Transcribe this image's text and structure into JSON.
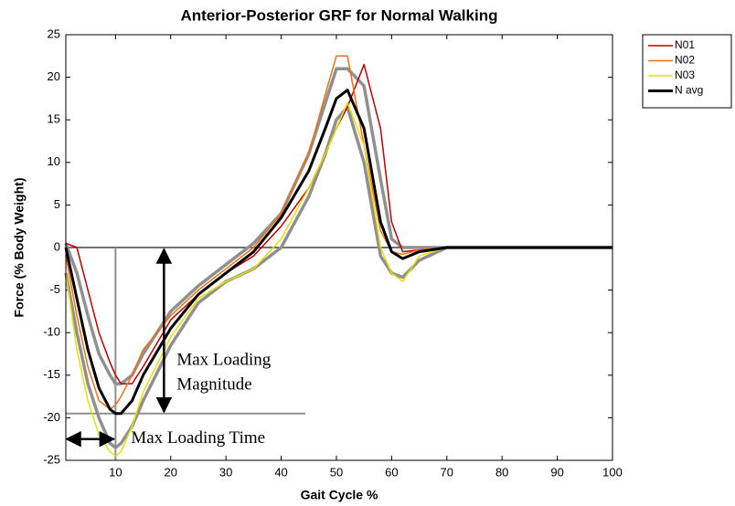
{
  "chart_data": {
    "type": "line",
    "title": "Anterior-Posterior GRF for Normal Walking",
    "xlabel": "Gait Cycle %",
    "ylabel": "Force (% Body Weight)",
    "x": [
      1,
      3,
      5,
      7,
      9,
      10,
      11,
      13,
      15,
      20,
      25,
      30,
      35,
      40,
      45,
      48,
      50,
      52,
      55,
      58,
      60,
      62,
      65,
      70,
      80,
      90,
      100
    ],
    "series": [
      {
        "color": "#909090",
        "values": [
          0.5,
          -3,
          -8,
          -12.5,
          -15,
          -16,
          -16,
          -15,
          -12.5,
          -7.5,
          -4.5,
          -2,
          0.5,
          4,
          11,
          17,
          21,
          21,
          19,
          8,
          1,
          0,
          0,
          0,
          0,
          0,
          0
        ]
      },
      {
        "color": "#909090",
        "values": [
          -3,
          -10,
          -16,
          -20,
          -23,
          -23.5,
          -23,
          -21,
          -18,
          -11.5,
          -6.5,
          -4,
          -2.5,
          0,
          6,
          11,
          15,
          16.5,
          10,
          -1,
          -3,
          -3.5,
          -1.5,
          0,
          0,
          0,
          0
        ]
      },
      {
        "name": "N01",
        "color": "#c00000",
        "values": [
          0.5,
          0,
          -5,
          -10,
          -13.5,
          -15,
          -16,
          -16,
          -14,
          -8.5,
          -5.5,
          -3,
          -1,
          2.5,
          7,
          11,
          14,
          16.5,
          21.5,
          14,
          3,
          -0.5,
          -0.3,
          0,
          0,
          0,
          0
        ]
      },
      {
        "name": "N02",
        "color": "#f07010",
        "values": [
          -1,
          -8,
          -14,
          -18,
          -19,
          -18.5,
          -17.5,
          -15,
          -12,
          -8,
          -5,
          -2.5,
          0,
          4,
          11,
          18,
          22.5,
          22.5,
          12,
          2,
          -0.5,
          -0.8,
          -0.3,
          0,
          0,
          0,
          0
        ]
      },
      {
        "name": "N03",
        "color": "#e8e000",
        "values": [
          -3,
          -12,
          -18,
          -22,
          -24,
          -24.5,
          -24,
          -21,
          -17,
          -10.5,
          -6,
          -4,
          -2.5,
          1,
          7,
          11,
          14,
          17,
          12,
          0,
          -3,
          -4,
          -1,
          0,
          0,
          0,
          0
        ]
      },
      {
        "name": "N avg",
        "color": "#000000",
        "values": [
          0,
          -6,
          -12,
          -16.5,
          -19,
          -19.5,
          -19.5,
          -18,
          -15,
          -9.5,
          -5.5,
          -3,
          -0.5,
          3.5,
          9,
          14,
          17.5,
          18.5,
          14,
          3,
          -0.5,
          -1.3,
          -0.5,
          0,
          0,
          0,
          0
        ]
      }
    ],
    "annotations": [
      "Max Loading",
      "Magnitude",
      "Max Loading Time"
    ],
    "xlim": [
      1,
      100
    ],
    "ylim": [
      -25,
      25
    ],
    "xticks": [
      10,
      20,
      30,
      40,
      50,
      60,
      70,
      80,
      90,
      100
    ],
    "yticks": [
      -25,
      -20,
      -15,
      -10,
      -5,
      0,
      5,
      10,
      15,
      20,
      25
    ]
  }
}
